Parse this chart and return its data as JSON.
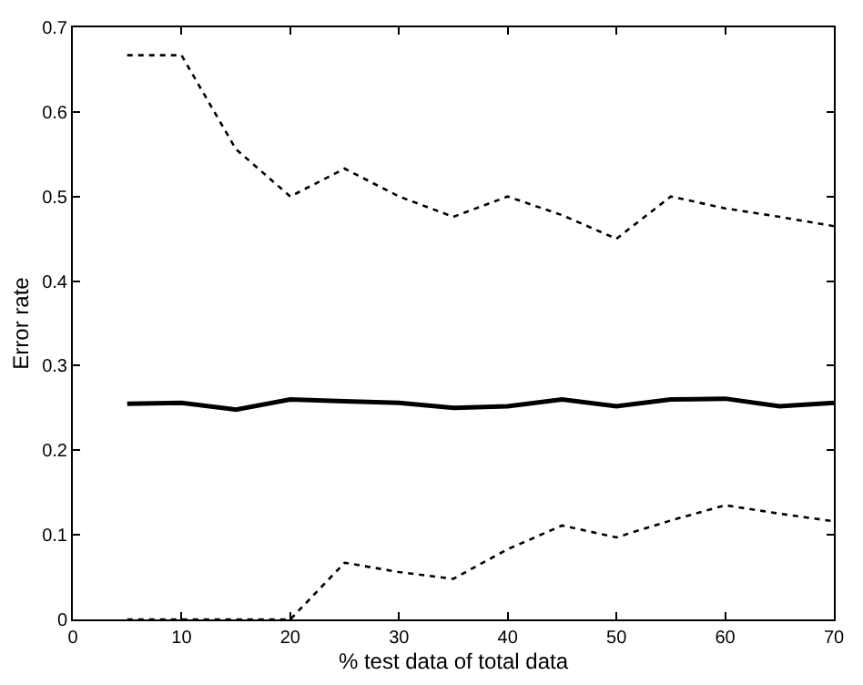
{
  "chart_data": {
    "type": "line",
    "xlabel": "% test data of total data",
    "ylabel": "Error rate",
    "x": [
      5,
      10,
      15,
      20,
      25,
      30,
      35,
      40,
      45,
      50,
      55,
      60,
      65,
      70
    ],
    "series": [
      {
        "color": "#000000",
        "line_style": "dotted",
        "values": [
          0.667,
          0.667,
          0.556,
          0.5,
          0.533,
          0.5,
          0.476,
          0.5,
          0.478,
          0.45,
          0.5,
          0.486,
          0.476,
          0.465
        ]
      },
      {
        "color": "#000000",
        "line_style": "solid",
        "values": [
          0.255,
          0.256,
          0.248,
          0.26,
          0.258,
          0.256,
          0.25,
          0.252,
          0.26,
          0.252,
          0.26,
          0.261,
          0.252,
          0.256
        ]
      },
      {
        "color": "#000000",
        "line_style": "dotted",
        "values": [
          0,
          0,
          0,
          0,
          0.067,
          0.056,
          0.048,
          0.083,
          0.111,
          0.097,
          0.117,
          0.135,
          0.125,
          0.116
        ]
      }
    ],
    "xlim": [
      0,
      70
    ],
    "xticks": [
      0,
      10,
      20,
      30,
      40,
      50,
      60,
      70
    ],
    "ylim": [
      0,
      0.7
    ],
    "yticks": [
      0,
      0.1,
      0.2,
      0.3,
      0.4,
      0.5,
      0.6,
      0.7
    ],
    "grid": false,
    "marker": "none"
  }
}
